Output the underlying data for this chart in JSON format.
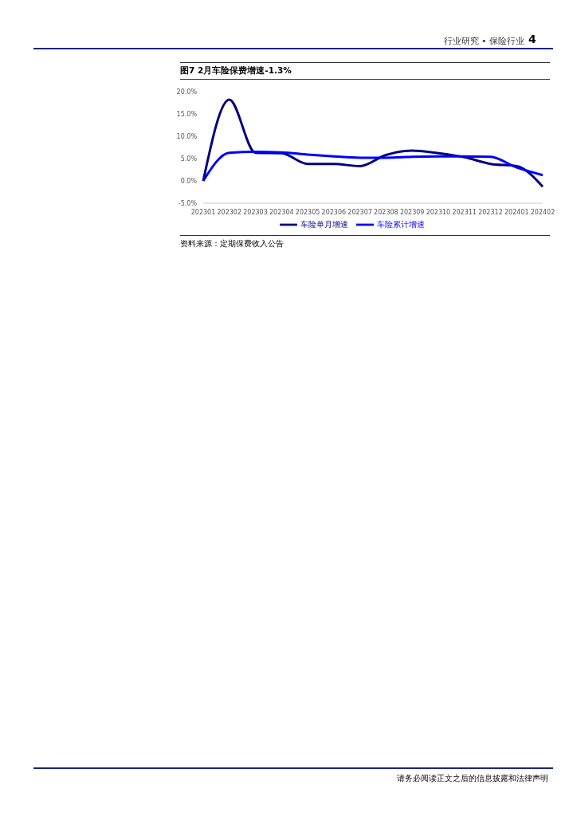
{
  "chart_data": {
    "type": "line",
    "title": "图7  2月车险保费增速-1.3%",
    "categories": [
      "202301",
      "202302",
      "202303",
      "202304",
      "202305",
      "202306",
      "202307",
      "202308",
      "202309",
      "202310",
      "202311",
      "202312",
      "202401",
      "202402"
    ],
    "series": [
      {
        "name": "车险单月增速",
        "color": "#000080",
        "values": [
          0,
          18.2,
          6.3,
          6.2,
          3.8,
          3.8,
          3.3,
          5.8,
          6.8,
          6.2,
          5.3,
          3.8,
          3.3,
          -1.3
        ]
      },
      {
        "name": "车险累计增速",
        "color": "#0000ff",
        "values": [
          0,
          6.3,
          6.5,
          6.4,
          5.9,
          5.5,
          5.2,
          5.2,
          5.4,
          5.5,
          5.5,
          5.4,
          3.0,
          1.3
        ]
      }
    ],
    "ylim": [
      -5,
      20
    ],
    "yticks": [
      {
        "value": -5,
        "label": "-5.0%"
      },
      {
        "value": 0,
        "label": "0.0%"
      },
      {
        "value": 5,
        "label": "5.0%"
      },
      {
        "value": 10,
        "label": "10.0%"
      },
      {
        "value": 15,
        "label": "15.0%"
      },
      {
        "value": 20,
        "label": "20.0%"
      }
    ],
    "grid": false,
    "legend": "bottom",
    "marker": "none",
    "line_style": "solid",
    "annotations": [
      "行业研究 • 保险行业",
      "4",
      "资料来源：定期保费收入公告",
      "请务必阅读正文之后的信息披露和法律声明"
    ]
  }
}
